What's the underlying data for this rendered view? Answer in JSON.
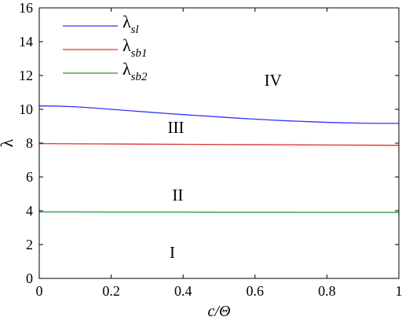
{
  "chart_data": {
    "type": "line",
    "xlabel": "c/Θ",
    "ylabel": "λ",
    "xlim": [
      0,
      1
    ],
    "ylim": [
      0,
      16
    ],
    "x_ticks": [
      "0",
      "0.2",
      "0.4",
      "0.6",
      "0.8",
      "1"
    ],
    "y_ticks": [
      "0",
      "2",
      "4",
      "6",
      "8",
      "10",
      "12",
      "14",
      "16"
    ],
    "grid": false,
    "legend_position": "top-left",
    "series": [
      {
        "name": "λ",
        "subscript": "sl",
        "color": "#3333ff",
        "x": [
          0,
          0.05,
          0.1,
          0.15,
          0.2,
          0.25,
          0.3,
          0.35,
          0.4,
          0.45,
          0.5,
          0.55,
          0.6,
          0.65,
          0.7,
          0.75,
          0.8,
          0.85,
          0.9,
          0.95,
          1.0
        ],
        "y": [
          10.2,
          10.19,
          10.15,
          10.08,
          10.0,
          9.92,
          9.84,
          9.76,
          9.69,
          9.62,
          9.55,
          9.48,
          9.42,
          9.36,
          9.31,
          9.27,
          9.23,
          9.2,
          9.18,
          9.17,
          9.17
        ]
      },
      {
        "name": "λ",
        "subscript": "sb1",
        "color": "#e03030",
        "x": [
          0,
          0.1,
          0.2,
          0.3,
          0.4,
          0.5,
          0.6,
          0.7,
          0.8,
          0.9,
          1.0
        ],
        "y": [
          7.97,
          7.96,
          7.95,
          7.94,
          7.93,
          7.92,
          7.91,
          7.9,
          7.89,
          7.88,
          7.87
        ]
      },
      {
        "name": "λ",
        "subscript": "sb2",
        "color": "#1a9a3a",
        "x": [
          0,
          0.1,
          0.2,
          0.3,
          0.4,
          0.5,
          0.6,
          0.7,
          0.8,
          0.9,
          1.0
        ],
        "y": [
          3.93,
          3.93,
          3.92,
          3.92,
          3.92,
          3.91,
          3.91,
          3.91,
          3.9,
          3.9,
          3.9
        ]
      }
    ],
    "annotations": [
      {
        "text": "IV",
        "x": 0.65,
        "y": 11.4
      },
      {
        "text": "III",
        "x": 0.38,
        "y": 8.6
      },
      {
        "text": "II",
        "x": 0.385,
        "y": 4.6
      },
      {
        "text": "I",
        "x": 0.37,
        "y": 1.2
      }
    ]
  }
}
